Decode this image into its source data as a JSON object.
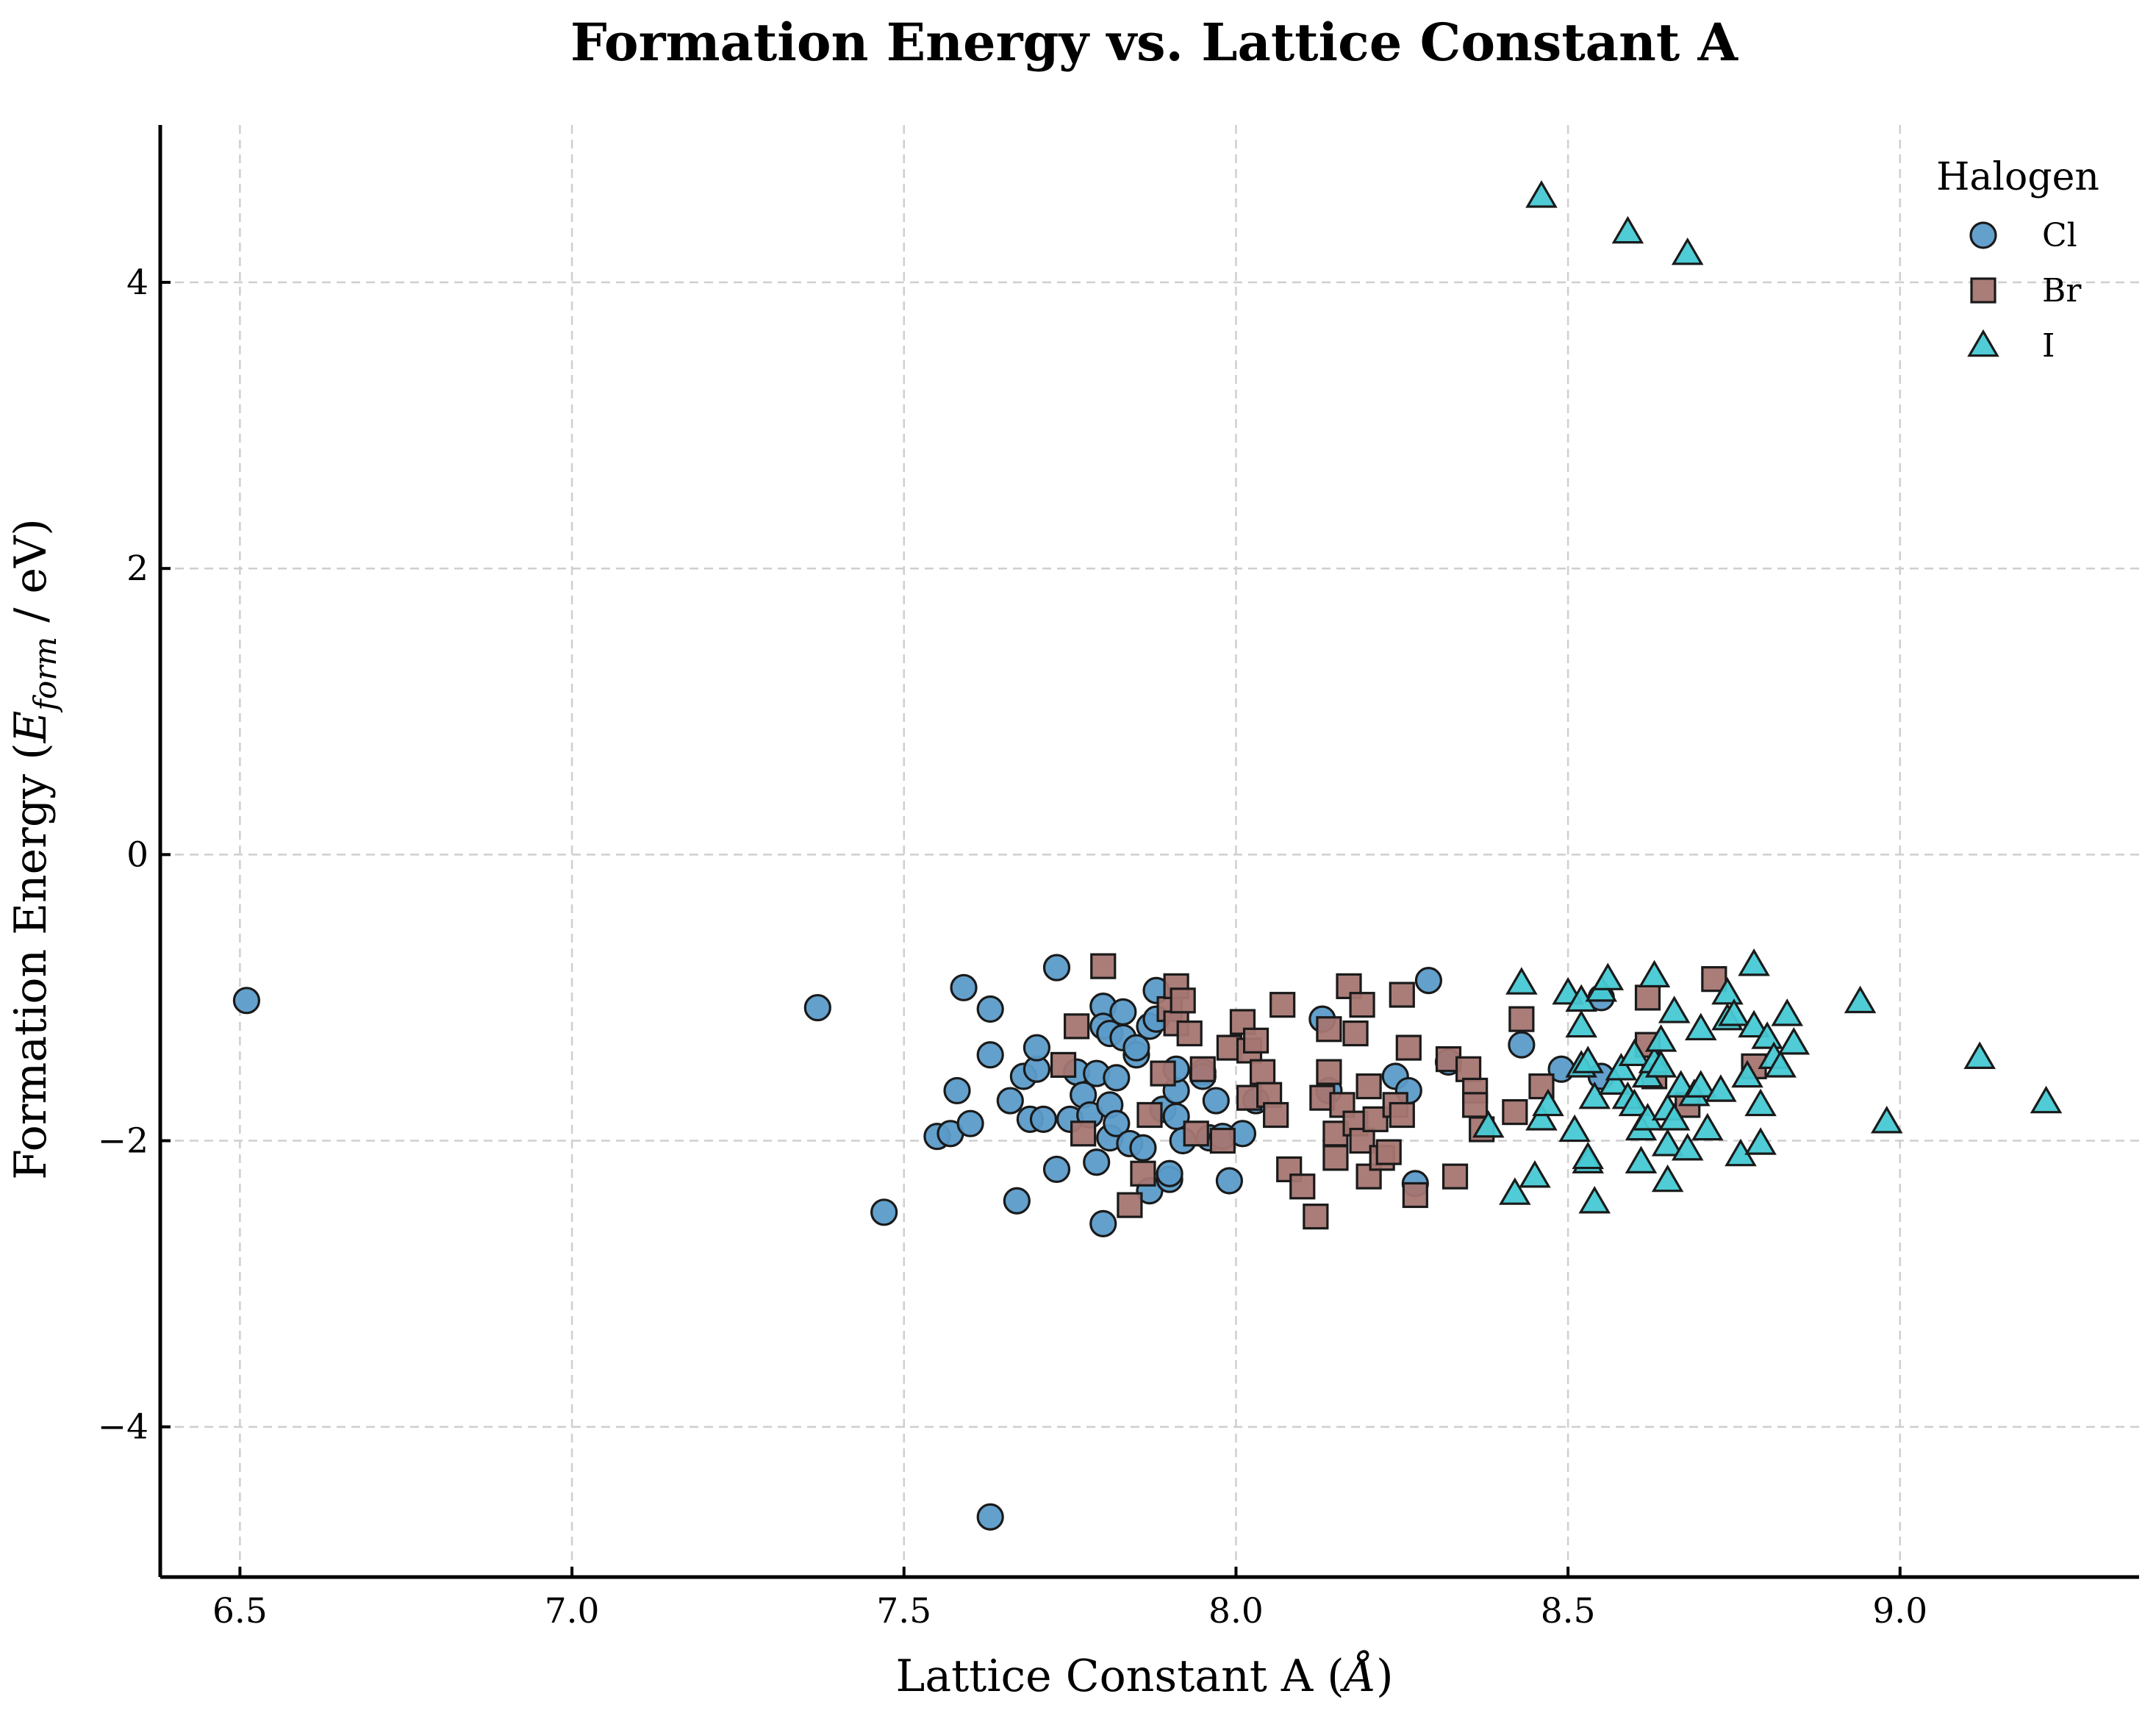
{
  "chart_data": {
    "type": "scatter",
    "title": "Formation Energy vs. Lattice Constant A",
    "xlabel": "Lattice Constant A (Å)",
    "ylabel": "Formation Energy (E_form / eV)",
    "ylabel_parts": {
      "before": "Formation Energy (",
      "var": "E",
      "sub": "form",
      "after": " / eV)"
    },
    "xlabel_parts": {
      "before": "Lattice Constant A (",
      "var": "Å",
      "after": ")"
    },
    "xlim": [
      6.38,
      9.36
    ],
    "ylim": [
      -5.05,
      5.1
    ],
    "x_ticks": [
      6.5,
      7.0,
      7.5,
      8.0,
      8.5,
      9.0
    ],
    "x_tick_labels": [
      "6.5",
      "7.0",
      "7.5",
      "8.0",
      "8.5",
      "9.0"
    ],
    "y_ticks": [
      -4,
      -2,
      0,
      2,
      4
    ],
    "y_tick_labels": [
      "−4",
      "−2",
      "0",
      "2",
      "4"
    ],
    "grid": true,
    "legend": {
      "title": "Halogen",
      "placement": "top-right"
    },
    "series": [
      {
        "name": "Cl",
        "marker": "circle",
        "color": "#5b9bc9",
        "points": [
          [
            6.51,
            -1.02
          ],
          [
            7.37,
            -1.07
          ],
          [
            7.47,
            -2.5
          ],
          [
            7.55,
            -1.97
          ],
          [
            7.57,
            -1.95
          ],
          [
            7.58,
            -1.65
          ],
          [
            7.59,
            -0.93
          ],
          [
            7.6,
            -1.88
          ],
          [
            7.63,
            -1.08
          ],
          [
            7.63,
            -1.4
          ],
          [
            7.63,
            -4.63
          ],
          [
            7.66,
            -1.72
          ],
          [
            7.67,
            -2.42
          ],
          [
            7.68,
            -1.55
          ],
          [
            7.69,
            -1.85
          ],
          [
            7.7,
            -1.5
          ],
          [
            7.7,
            -1.35
          ],
          [
            7.71,
            -1.85
          ],
          [
            7.73,
            -0.79
          ],
          [
            7.73,
            -2.2
          ],
          [
            7.75,
            -1.85
          ],
          [
            7.76,
            -1.52
          ],
          [
            7.77,
            -1.68
          ],
          [
            7.78,
            -1.82
          ],
          [
            7.79,
            -2.15
          ],
          [
            7.79,
            -1.53
          ],
          [
            7.8,
            -2.58
          ],
          [
            7.8,
            -1.06
          ],
          [
            7.8,
            -1.2
          ],
          [
            7.81,
            -1.25
          ],
          [
            7.81,
            -1.98
          ],
          [
            7.81,
            -1.75
          ],
          [
            7.82,
            -1.56
          ],
          [
            7.82,
            -1.88
          ],
          [
            7.83,
            -1.28
          ],
          [
            7.83,
            -1.1
          ],
          [
            7.84,
            -2.02
          ],
          [
            7.85,
            -1.4
          ],
          [
            7.85,
            -1.35
          ],
          [
            7.86,
            -2.05
          ],
          [
            7.87,
            -1.2
          ],
          [
            7.87,
            -2.35
          ],
          [
            7.88,
            -0.95
          ],
          [
            7.88,
            -1.15
          ],
          [
            7.89,
            -1.78
          ],
          [
            7.9,
            -2.27
          ],
          [
            7.9,
            -2.23
          ],
          [
            7.91,
            -1.83
          ],
          [
            7.91,
            -1.65
          ],
          [
            7.91,
            -1.5
          ],
          [
            7.92,
            -2.0
          ],
          [
            7.95,
            -1.52
          ],
          [
            7.95,
            -1.55
          ],
          [
            7.96,
            -1.98
          ],
          [
            7.97,
            -1.72
          ],
          [
            7.98,
            -1.97
          ],
          [
            7.99,
            -2.28
          ],
          [
            8.01,
            -1.95
          ],
          [
            8.03,
            -1.72
          ],
          [
            8.13,
            -1.15
          ],
          [
            8.14,
            -1.65
          ],
          [
            8.24,
            -1.55
          ],
          [
            8.26,
            -1.65
          ],
          [
            8.27,
            -2.3
          ],
          [
            8.29,
            -0.88
          ],
          [
            8.32,
            -1.45
          ],
          [
            8.43,
            -1.33
          ],
          [
            8.49,
            -1.5
          ],
          [
            8.55,
            -1.0
          ],
          [
            8.55,
            -1.55
          ]
        ]
      },
      {
        "name": "Br",
        "marker": "square",
        "color": "#a57672",
        "points": [
          [
            7.74,
            -1.47
          ],
          [
            7.76,
            -1.2
          ],
          [
            7.77,
            -1.95
          ],
          [
            7.8,
            -0.78
          ],
          [
            7.84,
            -2.45
          ],
          [
            7.86,
            -2.23
          ],
          [
            7.87,
            -1.82
          ],
          [
            7.89,
            -1.53
          ],
          [
            7.9,
            -1.08
          ],
          [
            7.91,
            -0.92
          ],
          [
            7.91,
            -1.18
          ],
          [
            7.92,
            -1.02
          ],
          [
            7.93,
            -1.25
          ],
          [
            7.94,
            -1.95
          ],
          [
            7.95,
            -1.5
          ],
          [
            7.98,
            -2.0
          ],
          [
            7.99,
            -1.35
          ],
          [
            8.01,
            -1.17
          ],
          [
            8.02,
            -1.7
          ],
          [
            8.02,
            -1.37
          ],
          [
            8.03,
            -1.3
          ],
          [
            8.04,
            -1.52
          ],
          [
            8.05,
            -1.68
          ],
          [
            8.06,
            -1.82
          ],
          [
            8.07,
            -1.05
          ],
          [
            8.08,
            -2.2
          ],
          [
            8.1,
            -2.32
          ],
          [
            8.12,
            -2.53
          ],
          [
            8.13,
            -1.7
          ],
          [
            8.14,
            -1.52
          ],
          [
            8.14,
            -1.22
          ],
          [
            8.15,
            -2.12
          ],
          [
            8.15,
            -1.95
          ],
          [
            8.16,
            -1.75
          ],
          [
            8.17,
            -0.92
          ],
          [
            8.18,
            -1.88
          ],
          [
            8.18,
            -1.25
          ],
          [
            8.19,
            -2.0
          ],
          [
            8.19,
            -1.05
          ],
          [
            8.2,
            -1.62
          ],
          [
            8.2,
            -2.25
          ],
          [
            8.21,
            -1.85
          ],
          [
            8.22,
            -2.12
          ],
          [
            8.23,
            -2.08
          ],
          [
            8.24,
            -1.75
          ],
          [
            8.25,
            -0.98
          ],
          [
            8.25,
            -1.82
          ],
          [
            8.26,
            -1.35
          ],
          [
            8.27,
            -2.38
          ],
          [
            8.32,
            -1.43
          ],
          [
            8.33,
            -2.25
          ],
          [
            8.35,
            -1.5
          ],
          [
            8.36,
            -1.65
          ],
          [
            8.36,
            -1.75
          ],
          [
            8.37,
            -1.92
          ],
          [
            8.42,
            -1.8
          ],
          [
            8.43,
            -1.15
          ],
          [
            8.46,
            -1.62
          ],
          [
            8.62,
            -1.0
          ],
          [
            8.62,
            -1.33
          ],
          [
            8.63,
            -1.55
          ],
          [
            8.68,
            -1.75
          ],
          [
            8.72,
            -0.87
          ],
          [
            8.78,
            -1.48
          ]
        ]
      },
      {
        "name": "I",
        "marker": "triangle",
        "color": "#46c9d3",
        "points": [
          [
            8.46,
            4.6
          ],
          [
            8.59,
            4.35
          ],
          [
            8.68,
            4.2
          ],
          [
            8.38,
            -1.9
          ],
          [
            8.42,
            -2.37
          ],
          [
            8.43,
            -0.9
          ],
          [
            8.45,
            -2.25
          ],
          [
            8.46,
            -1.85
          ],
          [
            8.47,
            -1.75
          ],
          [
            8.5,
            -0.97
          ],
          [
            8.51,
            -1.93
          ],
          [
            8.52,
            -1.48
          ],
          [
            8.52,
            -1.2
          ],
          [
            8.52,
            -1.02
          ],
          [
            8.53,
            -2.15
          ],
          [
            8.53,
            -2.12
          ],
          [
            8.53,
            -1.45
          ],
          [
            8.54,
            -2.43
          ],
          [
            8.54,
            -1.7
          ],
          [
            8.55,
            -0.95
          ],
          [
            8.56,
            -0.87
          ],
          [
            8.57,
            -1.6
          ],
          [
            8.58,
            -1.5
          ],
          [
            8.59,
            -1.7
          ],
          [
            8.6,
            -1.75
          ],
          [
            8.6,
            -1.4
          ],
          [
            8.61,
            -2.15
          ],
          [
            8.61,
            -1.92
          ],
          [
            8.62,
            -1.85
          ],
          [
            8.62,
            -1.55
          ],
          [
            8.63,
            -1.45
          ],
          [
            8.63,
            -0.85
          ],
          [
            8.64,
            -1.48
          ],
          [
            8.64,
            -1.3
          ],
          [
            8.65,
            -2.03
          ],
          [
            8.65,
            -1.78
          ],
          [
            8.65,
            -2.28
          ],
          [
            8.66,
            -1.85
          ],
          [
            8.66,
            -1.1
          ],
          [
            8.67,
            -1.62
          ],
          [
            8.68,
            -2.06
          ],
          [
            8.69,
            -1.68
          ],
          [
            8.7,
            -1.62
          ],
          [
            8.7,
            -1.22
          ],
          [
            8.71,
            -1.92
          ],
          [
            8.73,
            -1.65
          ],
          [
            8.74,
            -1.15
          ],
          [
            8.74,
            -0.97
          ],
          [
            8.75,
            -1.12
          ],
          [
            8.76,
            -2.1
          ],
          [
            8.77,
            -1.55
          ],
          [
            8.78,
            -1.2
          ],
          [
            8.78,
            -0.77
          ],
          [
            8.79,
            -2.02
          ],
          [
            8.79,
            -1.75
          ],
          [
            8.8,
            -1.28
          ],
          [
            8.81,
            -1.42
          ],
          [
            8.82,
            -1.48
          ],
          [
            8.83,
            -1.12
          ],
          [
            8.84,
            -1.32
          ],
          [
            8.94,
            -1.03
          ],
          [
            8.98,
            -1.87
          ],
          [
            9.12,
            -1.42
          ],
          [
            9.22,
            -1.73
          ]
        ]
      }
    ]
  }
}
